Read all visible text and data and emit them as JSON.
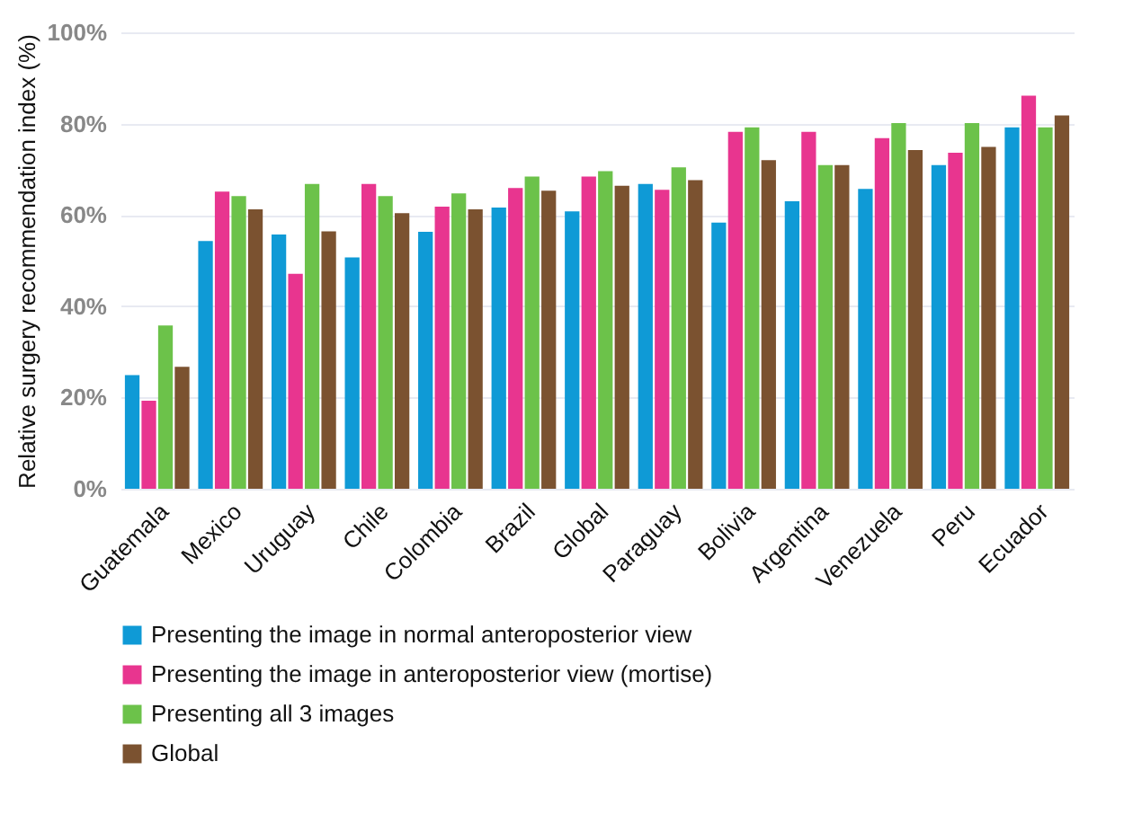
{
  "chart_data": {
    "type": "bar",
    "ylabel": "Relative surgery recommendation index (%)",
    "categories": [
      "Guatemala",
      "Mexico",
      "Uruguay",
      "Chile",
      "Colombia",
      "Brazil",
      "Global",
      "Paraguay",
      "Bolivia",
      "Argentina",
      "Venezuela",
      "Peru",
      "Ecuador"
    ],
    "series": [
      {
        "name": "Presenting the image in normal anteroposterior view",
        "color": "#0f9ad6",
        "values": [
          24.9,
          54.3,
          55.7,
          50.7,
          56.3,
          61.6,
          60.8,
          66.8,
          58.3,
          63.0,
          65.7,
          70.9,
          79.2
        ]
      },
      {
        "name": "Presenting the image in anteroposterior view (mortise)",
        "color": "#e8358f",
        "values": [
          19.3,
          65.1,
          47.1,
          66.8,
          61.8,
          65.9,
          68.4,
          65.5,
          78.2,
          78.2,
          76.8,
          73.6,
          86.1
        ]
      },
      {
        "name": "Presenting all 3 images",
        "color": "#6cc24a",
        "values": [
          35.8,
          64.1,
          66.8,
          64.1,
          64.7,
          68.4,
          69.6,
          70.4,
          79.2,
          70.9,
          80.1,
          80.1,
          79.2
        ]
      },
      {
        "name": "Global",
        "color": "#7b5230",
        "values": [
          26.7,
          61.2,
          56.4,
          60.4,
          61.2,
          65.3,
          66.4,
          67.6,
          72.0,
          70.9,
          74.2,
          74.9,
          81.8
        ]
      }
    ],
    "ylim": [
      0,
      100
    ],
    "yticks": [
      {
        "value": 0,
        "label": "0%"
      },
      {
        "value": 20,
        "label": "20%"
      },
      {
        "value": 40,
        "label": "40%"
      },
      {
        "value": 60,
        "label": "60%"
      },
      {
        "value": 80,
        "label": "80%"
      },
      {
        "value": 100,
        "label": "100%"
      }
    ],
    "grid": "y",
    "legend": "bottom"
  }
}
